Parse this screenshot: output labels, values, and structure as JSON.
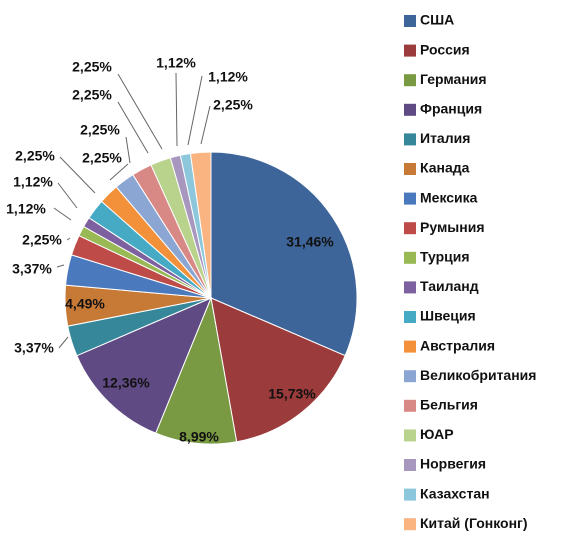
{
  "chart_data": {
    "type": "pie",
    "legend_position": "right",
    "slices": [
      {
        "label": "США",
        "value": 31.46,
        "display": "31,46%",
        "color": "#3E6599"
      },
      {
        "label": "Россия",
        "value": 15.73,
        "display": "15,73%",
        "color": "#9B3B3B"
      },
      {
        "label": "Германия",
        "value": 8.99,
        "display": "8,99%",
        "color": "#799A43"
      },
      {
        "label": "Франция",
        "value": 12.36,
        "display": "12,36%",
        "color": "#5F4A84"
      },
      {
        "label": "Италия",
        "value": 3.37,
        "display": "3,37%",
        "color": "#36879A"
      },
      {
        "label": "Канада",
        "value": 4.49,
        "display": "4,49%",
        "color": "#C77936"
      },
      {
        "label": "Мексика",
        "value": 3.37,
        "display": "3,37%",
        "color": "#4A79BE"
      },
      {
        "label": "Румыния",
        "value": 2.25,
        "display": "2,25%",
        "color": "#BE4B48"
      },
      {
        "label": "Турция",
        "value": 1.12,
        "display": "1,12%",
        "color": "#98B954"
      },
      {
        "label": "Таиланд",
        "value": 1.12,
        "display": "1,12%",
        "color": "#7D60A0"
      },
      {
        "label": "Швеция",
        "value": 2.25,
        "display": "2,25%",
        "color": "#46AAC4"
      },
      {
        "label": "Австралия",
        "value": 2.25,
        "display": "2,25%",
        "color": "#F2913A"
      },
      {
        "label": "Великобритания",
        "value": 2.25,
        "display": "2,25%",
        "color": "#8BA6D3"
      },
      {
        "label": "Бельгия",
        "value": 2.25,
        "display": "2,25%",
        "color": "#D88985"
      },
      {
        "label": "ЮАР",
        "value": 2.25,
        "display": "2,25%",
        "color": "#B9D38C"
      },
      {
        "label": "Норвегия",
        "value": 1.12,
        "display": "1,12%",
        "color": "#A796BE"
      },
      {
        "label": "Казахстан",
        "value": 1.12,
        "display": "1,12%",
        "color": "#8CC7DB"
      },
      {
        "label": "Китай (Гонконг)",
        "value": 2.25,
        "display": "2,25%",
        "color": "#F9B482"
      }
    ]
  }
}
